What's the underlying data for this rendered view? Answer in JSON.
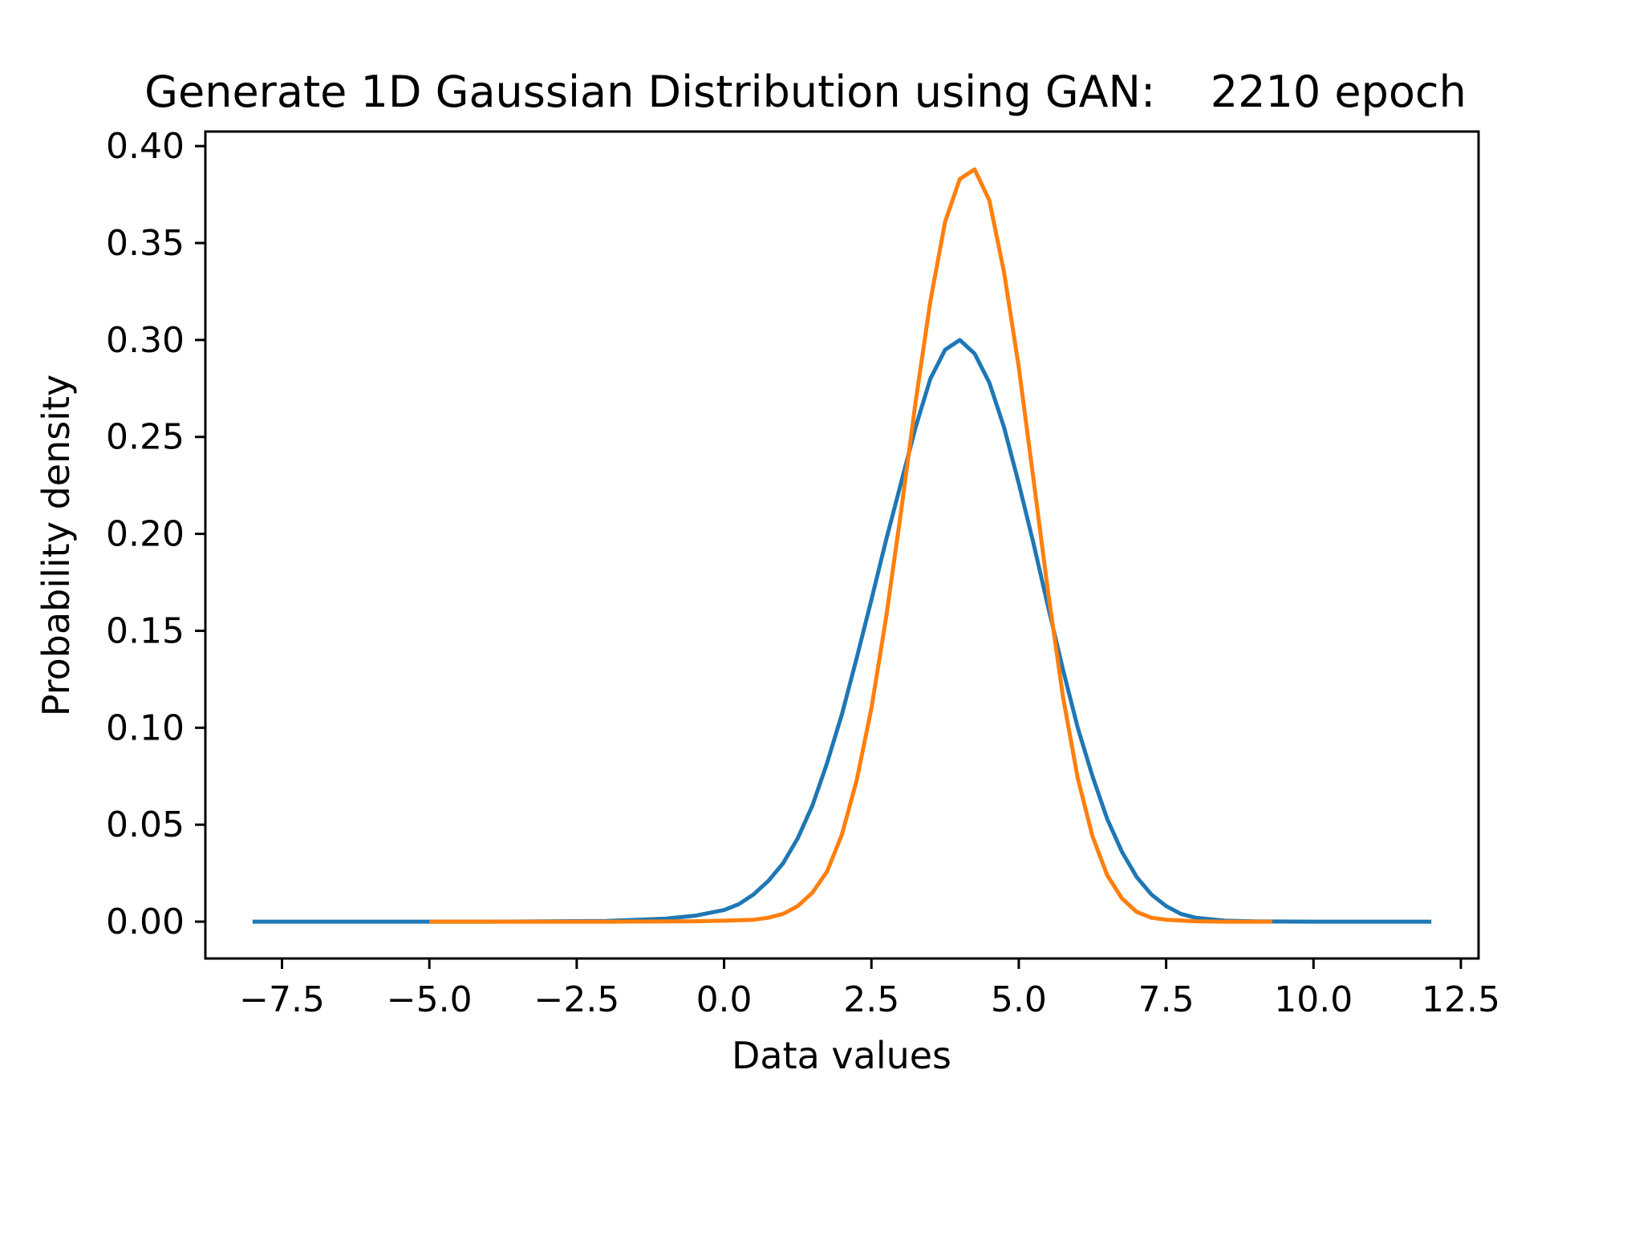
{
  "chart_data": {
    "type": "line",
    "title": "Generate 1D Gaussian Distribution using GAN:    2210 epoch",
    "xlabel": "Data values",
    "ylabel": "Probability density",
    "xlim": [
      -8.8,
      12.8
    ],
    "ylim": [
      -0.019,
      0.4075
    ],
    "x_ticks": [
      -7.5,
      -5.0,
      -2.5,
      0.0,
      2.5,
      5.0,
      7.5,
      10.0,
      12.5
    ],
    "x_tick_labels": [
      "−7.5",
      "−5.0",
      "−2.5",
      "0.0",
      "2.5",
      "5.0",
      "7.5",
      "10.0",
      "12.5"
    ],
    "y_ticks": [
      0.0,
      0.05,
      0.1,
      0.15,
      0.2,
      0.25,
      0.3,
      0.35,
      0.4
    ],
    "y_tick_labels": [
      "0.00",
      "0.05",
      "0.10",
      "0.15",
      "0.20",
      "0.25",
      "0.30",
      "0.35",
      "0.40"
    ],
    "grid": false,
    "legend": "none",
    "series": [
      {
        "color": "#1f77b4",
        "x": [
          -8.0,
          -6.0,
          -4.0,
          -2.0,
          -1.0,
          -0.5,
          0.0,
          0.25,
          0.5,
          0.75,
          1.0,
          1.25,
          1.5,
          1.75,
          2.0,
          2.25,
          2.5,
          2.75,
          3.0,
          3.25,
          3.5,
          3.75,
          4.0,
          4.25,
          4.5,
          4.75,
          5.0,
          5.25,
          5.5,
          5.75,
          6.0,
          6.25,
          6.5,
          6.75,
          7.0,
          7.25,
          7.5,
          7.75,
          8.0,
          8.5,
          9.0,
          10.0,
          11.0,
          12.0
        ],
        "y": [
          0.0,
          0.0,
          0.0,
          0.0003,
          0.0015,
          0.003,
          0.006,
          0.009,
          0.014,
          0.021,
          0.03,
          0.043,
          0.06,
          0.082,
          0.107,
          0.136,
          0.166,
          0.197,
          0.226,
          0.255,
          0.28,
          0.295,
          0.3,
          0.293,
          0.278,
          0.255,
          0.226,
          0.195,
          0.162,
          0.13,
          0.1,
          0.075,
          0.053,
          0.036,
          0.023,
          0.014,
          0.008,
          0.004,
          0.002,
          0.0005,
          0.0001,
          0.0,
          0.0,
          0.0
        ]
      },
      {
        "color": "#ff7f0e",
        "x": [
          -5.0,
          -2.0,
          -0.5,
          0.0,
          0.5,
          0.75,
          1.0,
          1.25,
          1.5,
          1.75,
          2.0,
          2.25,
          2.5,
          2.75,
          3.0,
          3.25,
          3.5,
          3.75,
          4.0,
          4.25,
          4.5,
          4.75,
          5.0,
          5.25,
          5.5,
          5.75,
          6.0,
          6.25,
          6.5,
          6.75,
          7.0,
          7.25,
          7.5,
          8.0,
          8.5,
          9.0,
          9.3
        ],
        "y": [
          0.0,
          0.0,
          0.0002,
          0.0005,
          0.001,
          0.002,
          0.004,
          0.008,
          0.015,
          0.026,
          0.045,
          0.073,
          0.11,
          0.157,
          0.211,
          0.268,
          0.32,
          0.361,
          0.383,
          0.388,
          0.372,
          0.335,
          0.286,
          0.228,
          0.169,
          0.116,
          0.074,
          0.044,
          0.024,
          0.012,
          0.005,
          0.002,
          0.001,
          0.0002,
          0.0,
          0.0,
          0.0
        ]
      }
    ]
  }
}
